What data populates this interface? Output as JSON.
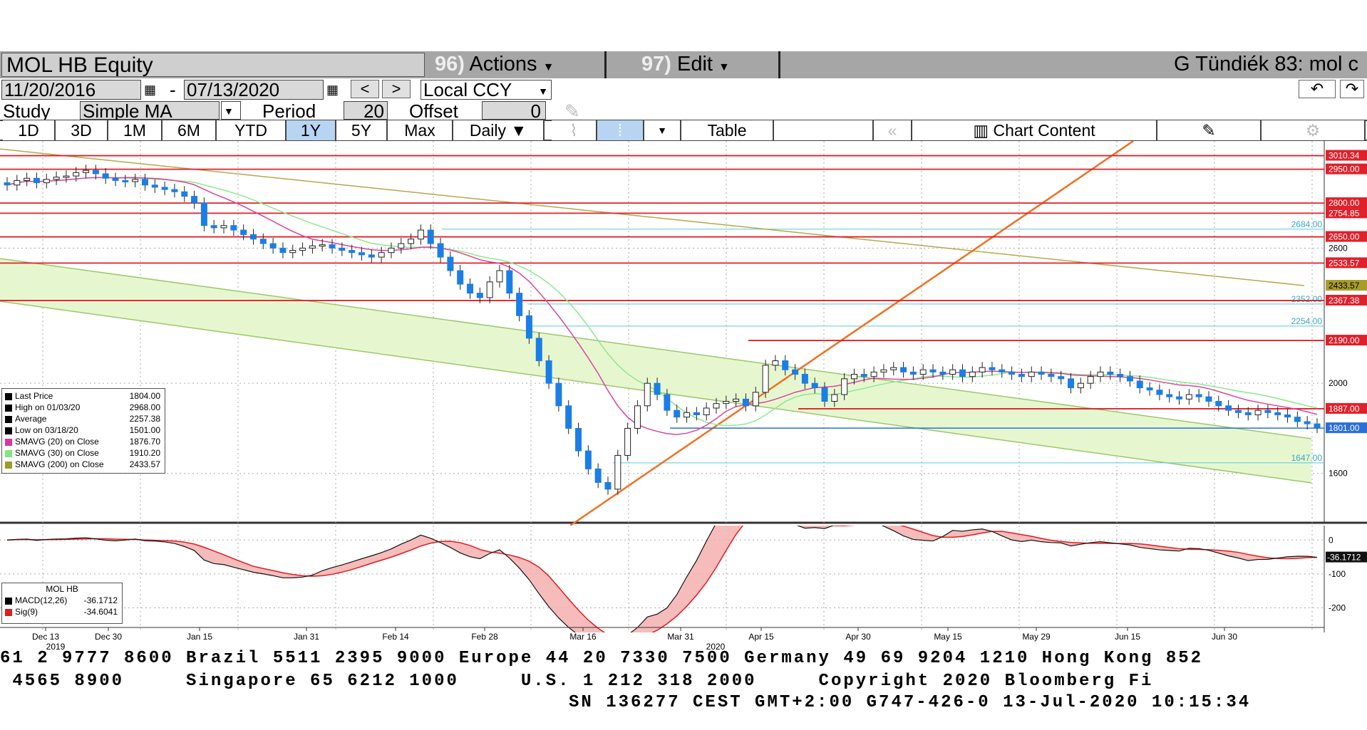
{
  "header": {
    "security": "MOL HB Equity",
    "actions_num": "96)",
    "actions_label": "Actions",
    "edit_num": "97)",
    "edit_label": "Edit",
    "title_right": "G Tündiék 83: mol c"
  },
  "dates": {
    "start": "11/20/2016",
    "dash": "-",
    "end": "07/13/2020",
    "currency": "Local CCY"
  },
  "study": {
    "label": "Study",
    "value": "Simple MA",
    "period_label": "Period",
    "period": "20",
    "offset_label": "Offset",
    "offset": "0"
  },
  "tabs": [
    {
      "label": "1D"
    },
    {
      "label": "3D"
    },
    {
      "label": "1M"
    },
    {
      "label": "6M"
    },
    {
      "label": "YTD"
    },
    {
      "label": "1Y"
    },
    {
      "label": "5Y"
    },
    {
      "label": "Max"
    },
    {
      "label": "Daily ▼"
    }
  ],
  "toolbar": {
    "table_label": "Table",
    "chart_content_label": "Chart Content"
  },
  "legend": {
    "rows": [
      {
        "label": "Last Price",
        "value": "1804.00",
        "color": "#000000"
      },
      {
        "label": "High on 01/03/20",
        "value": "2968.00",
        "color": "#000000"
      },
      {
        "label": "Average",
        "value": "2257.38",
        "color": "#000000"
      },
      {
        "label": "Low on 03/18/20",
        "value": "1501.00",
        "color": "#000000"
      },
      {
        "label": "SMAVG (20)  on Close",
        "value": "1876.70",
        "color": "#e0359a"
      },
      {
        "label": "SMAVG (30)  on Close",
        "value": "1910.20",
        "color": "#7ee87e"
      },
      {
        "label": "SMAVG (200)  on Close",
        "value": "2433.57",
        "color": "#9c9c2a"
      }
    ]
  },
  "macd_legend": {
    "title": "MOL HB",
    "rows": [
      {
        "label": "MACD(12,26)",
        "value": "-36.1712",
        "color": "#000000"
      },
      {
        "label": "Sig(9)",
        "value": "-34.6041",
        "color": "#e01c1c"
      }
    ]
  },
  "chart_data": {
    "type": "candlestick",
    "price_axis_ticks": [
      "2600",
      "2000",
      "1600"
    ],
    "price_axis_range": [
      1400,
      3050
    ],
    "levels_red": [
      {
        "label": "3010.34",
        "value": 3010.34
      },
      {
        "label": "2950.00",
        "value": 2950.0
      },
      {
        "label": "2800.00",
        "value": 2800.0
      },
      {
        "label": "2754.85",
        "value": 2754.85
      },
      {
        "label": "2650.00",
        "value": 2650.0
      },
      {
        "label": "2533.57",
        "value": 2533.57
      },
      {
        "label": "2367.38",
        "value": 2367.38
      },
      {
        "label": "2190.00",
        "value": 2190.0
      },
      {
        "label": "1887.00",
        "value": 1887.0
      }
    ],
    "levels_cyan": [
      {
        "label": "2684.00",
        "value": 2684
      },
      {
        "label": "2352.00",
        "value": 2352
      },
      {
        "label": "2254.00",
        "value": 2254
      },
      {
        "label": "1647.00",
        "value": 1647
      }
    ],
    "level_blue": {
      "label": "1801.00",
      "value": 1801
    },
    "sma200_label": "2433.57",
    "sma200_value": 2433.57,
    "x_labels": [
      "Dec 13",
      "Dec 30",
      "Jan 15",
      "Jan 31",
      "Feb 14",
      "Feb 28",
      "Mar 16",
      "Mar 31",
      "Apr 15",
      "Apr 30",
      "May 15",
      "May 29",
      "Jun 15",
      "Jun 30"
    ],
    "year_labels": [
      "2019",
      "2020"
    ],
    "closes": [
      2880,
      2900,
      2910,
      2890,
      2905,
      2915,
      2920,
      2935,
      2945,
      2930,
      2910,
      2900,
      2895,
      2905,
      2880,
      2870,
      2860,
      2850,
      2830,
      2800,
      2700,
      2690,
      2700,
      2680,
      2660,
      2640,
      2620,
      2600,
      2580,
      2590,
      2600,
      2610,
      2615,
      2600,
      2590,
      2580,
      2570,
      2560,
      2580,
      2600,
      2620,
      2640,
      2680,
      2620,
      2560,
      2500,
      2440,
      2400,
      2380,
      2450,
      2500,
      2400,
      2300,
      2200,
      2100,
      2000,
      1900,
      1800,
      1700,
      1620,
      1560,
      1530,
      1680,
      1800,
      1900,
      2000,
      1950,
      1880,
      1850,
      1870,
      1860,
      1890,
      1910,
      1920,
      1930,
      1900,
      1960,
      2080,
      2100,
      2060,
      2040,
      2000,
      1980,
      1920,
      1950,
      2020,
      2040,
      2030,
      2050,
      2060,
      2070,
      2050,
      2040,
      2060,
      2050,
      2040,
      2060,
      2030,
      2050,
      2070,
      2060,
      2050,
      2040,
      2030,
      2050,
      2040,
      2030,
      2020,
      1980,
      2000,
      2030,
      2050,
      2040,
      2030,
      2010,
      1980,
      1970,
      1950,
      1940,
      1930,
      1950,
      1940,
      1920,
      1900,
      1880,
      1870,
      1860,
      1880,
      1870,
      1860,
      1850,
      1830,
      1820,
      1804
    ],
    "macd": {
      "ticks": [
        "0",
        "-100",
        "-200"
      ],
      "value_label": "-36.1712",
      "range": [
        -260,
        30
      ]
    }
  },
  "footer": {
    "line1": "61 2 9777 8600 Brazil 5511 2395 9000 Europe 44 20 7330 7500 Germany 49 69 9204 1210 Hong Kong 852",
    "line2": " 4565 8900     Singapore 65 6212 1000     U.S. 1 212 318 2000     Copyright 2020 Bloomberg Fi",
    "line3": "SN 136277 CEST GMT+2:00 G747-426-0 13-Jul-2020 10:15:34"
  }
}
